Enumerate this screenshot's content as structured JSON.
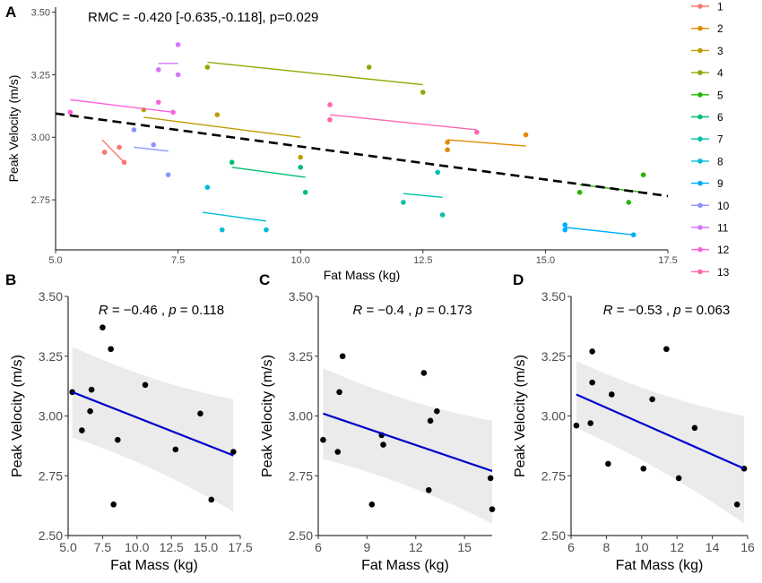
{
  "chart_data": [
    {
      "panel": "A",
      "type": "scatter",
      "annotation": "RMC = -0.420 [-0.635,-0.118], p=0.029",
      "xlabel": "Fat Mass (kg)",
      "ylabel": "Peak Velocity (m/s)",
      "xlim": [
        5.0,
        17.5
      ],
      "ylim": [
        2.55,
        3.52
      ],
      "xticks": [
        5.0,
        7.5,
        10.0,
        12.5,
        15.0,
        17.5
      ],
      "yticks": [
        2.75,
        3.0,
        3.25,
        3.5
      ],
      "xtick_labels": [
        "5.0",
        "7.5",
        "10.0",
        "12.5",
        "15.0",
        "17.5"
      ],
      "ytick_labels": [
        "2.75",
        "3.00",
        "3.25",
        "3.50"
      ],
      "grid": false,
      "legend_position": "right",
      "overall_line": {
        "x": [
          5.0,
          17.5
        ],
        "y": [
          3.095,
          2.765
        ],
        "style": "dashed",
        "color": "#000000"
      },
      "series": [
        {
          "name": "1",
          "color": "#F8766D",
          "points": [
            [
              6.0,
              2.94
            ],
            [
              6.3,
              2.96
            ],
            [
              6.4,
              2.9
            ]
          ],
          "fit": [
            [
              5.95,
              2.99
            ],
            [
              6.4,
              2.9
            ]
          ]
        },
        {
          "name": "2",
          "color": "#E18A00",
          "points": [
            [
              13.0,
              2.98
            ],
            [
              13.0,
              2.95
            ],
            [
              14.6,
              3.01
            ]
          ],
          "fit": [
            [
              13.0,
              2.99
            ],
            [
              14.6,
              2.965
            ]
          ]
        },
        {
          "name": "3",
          "color": "#BE9C00",
          "points": [
            [
              6.8,
              3.11
            ],
            [
              8.3,
              3.09
            ],
            [
              10.0,
              2.92
            ]
          ],
          "fit": [
            [
              6.8,
              3.08
            ],
            [
              10.0,
              3.0
            ]
          ]
        },
        {
          "name": "4",
          "color": "#8CAB00",
          "points": [
            [
              8.1,
              3.28
            ],
            [
              11.4,
              3.28
            ],
            [
              12.5,
              3.18
            ]
          ],
          "fit": [
            [
              8.1,
              3.3
            ],
            [
              12.5,
              3.21
            ]
          ]
        },
        {
          "name": "5",
          "color": "#24B700",
          "points": [
            [
              15.7,
              2.78
            ],
            [
              16.7,
              2.74
            ],
            [
              17.0,
              2.85
            ]
          ],
          "fit": [
            [
              15.7,
              2.81
            ],
            [
              17.0,
              2.78
            ]
          ]
        },
        {
          "name": "6",
          "color": "#00BE70",
          "points": [
            [
              8.6,
              2.9
            ],
            [
              10.0,
              2.88
            ],
            [
              10.1,
              2.78
            ]
          ],
          "fit": [
            [
              8.6,
              2.88
            ],
            [
              10.1,
              2.84
            ]
          ]
        },
        {
          "name": "7",
          "color": "#00C1AB",
          "points": [
            [
              12.1,
              2.74
            ],
            [
              12.8,
              2.86
            ],
            [
              12.9,
              2.69
            ]
          ],
          "fit": [
            [
              12.1,
              2.775
            ],
            [
              12.9,
              2.76
            ]
          ]
        },
        {
          "name": "8",
          "color": "#00BBDA",
          "points": [
            [
              8.1,
              2.8
            ],
            [
              8.4,
              2.63
            ],
            [
              9.3,
              2.63
            ]
          ],
          "fit": [
            [
              8.0,
              2.7
            ],
            [
              9.3,
              2.665
            ]
          ]
        },
        {
          "name": "9",
          "color": "#00ACFC",
          "points": [
            [
              15.4,
              2.65
            ],
            [
              15.4,
              2.63
            ],
            [
              16.8,
              2.61
            ]
          ],
          "fit": [
            [
              15.4,
              2.64
            ],
            [
              16.8,
              2.61
            ]
          ]
        },
        {
          "name": "10",
          "color": "#8B93FF",
          "points": [
            [
              6.6,
              3.03
            ],
            [
              7.0,
              2.97
            ],
            [
              7.3,
              2.85
            ]
          ],
          "fit": [
            [
              6.6,
              2.96
            ],
            [
              7.3,
              2.945
            ]
          ]
        },
        {
          "name": "11",
          "color": "#D575FE",
          "points": [
            [
              7.1,
              3.27
            ],
            [
              7.5,
              3.37
            ],
            [
              7.5,
              3.25
            ]
          ],
          "fit": [
            [
              7.1,
              3.295
            ],
            [
              7.5,
              3.295
            ]
          ]
        },
        {
          "name": "12",
          "color": "#F962DD",
          "points": [
            [
              5.3,
              3.1
            ],
            [
              7.1,
              3.14
            ],
            [
              7.4,
              3.1
            ]
          ],
          "fit": [
            [
              5.3,
              3.15
            ],
            [
              7.4,
              3.1
            ]
          ]
        },
        {
          "name": "13",
          "color": "#FF65AC",
          "points": [
            [
              10.6,
              3.13
            ],
            [
              10.6,
              3.07
            ],
            [
              13.6,
              3.02
            ]
          ],
          "fit": [
            [
              10.6,
              3.09
            ],
            [
              13.6,
              3.03
            ]
          ]
        }
      ]
    },
    {
      "panel": "B",
      "type": "scatter",
      "annotation": {
        "r_label": "R",
        "r_value": "−0.46",
        "sep": ",",
        "p_label": "p",
        "p_value": "0.118"
      },
      "xlabel": "Fat Mass (kg)",
      "ylabel": "Peak Velocity (m/s)",
      "xlim": [
        5.0,
        17.5
      ],
      "ylim": [
        2.5,
        3.5
      ],
      "xticks": [
        5.0,
        7.5,
        10.0,
        12.5,
        15.0,
        17.5
      ],
      "yticks": [
        2.5,
        2.75,
        3.0,
        3.25,
        3.5
      ],
      "xtick_labels": [
        "5.0",
        "7.5",
        "10.0",
        "12.5",
        "15.0",
        "17.5"
      ],
      "ytick_labels": [
        "2.50",
        "2.75",
        "3.00",
        "3.25",
        "3.50"
      ],
      "grid": false,
      "points": [
        [
          5.3,
          3.1
        ],
        [
          6.0,
          2.94
        ],
        [
          6.7,
          3.11
        ],
        [
          6.6,
          3.02
        ],
        [
          7.5,
          3.37
        ],
        [
          8.1,
          3.28
        ],
        [
          8.6,
          2.9
        ],
        [
          8.3,
          2.63
        ],
        [
          10.6,
          3.13
        ],
        [
          12.8,
          2.86
        ],
        [
          14.6,
          3.01
        ],
        [
          15.4,
          2.65
        ],
        [
          17.0,
          2.85
        ]
      ],
      "fit": {
        "x": [
          5.3,
          17.0
        ],
        "y": [
          3.1,
          2.835
        ],
        "color": "#0000CC"
      },
      "band": {
        "x": [
          5.3,
          17.0
        ],
        "upper": [
          3.29,
          3.07
        ],
        "lower": [
          2.91,
          2.6
        ]
      }
    },
    {
      "panel": "C",
      "type": "scatter",
      "annotation": {
        "r_label": "R",
        "r_value": "−0.4",
        "sep": ",",
        "p_label": "p",
        "p_value": "0.173"
      },
      "xlabel": "Fat Mass (kg)",
      "ylabel": "Peak Velocity (m/s)",
      "xlim": [
        6.0,
        16.7
      ],
      "ylim": [
        2.5,
        3.5
      ],
      "xticks": [
        6,
        9,
        12,
        15
      ],
      "yticks": [
        2.5,
        2.75,
        3.0,
        3.25,
        3.5
      ],
      "xtick_labels": [
        "6",
        "9",
        "12",
        "15"
      ],
      "ytick_labels": [
        "2.50",
        "2.75",
        "3.00",
        "3.25",
        "3.50"
      ],
      "grid": false,
      "points": [
        [
          6.3,
          2.9
        ],
        [
          7.2,
          2.85
        ],
        [
          7.3,
          3.1
        ],
        [
          7.5,
          3.25
        ],
        [
          9.3,
          2.63
        ],
        [
          9.9,
          2.92
        ],
        [
          10.0,
          2.88
        ],
        [
          12.5,
          3.18
        ],
        [
          12.8,
          2.69
        ],
        [
          12.9,
          2.98
        ],
        [
          13.3,
          3.02
        ],
        [
          16.6,
          2.74
        ],
        [
          16.7,
          2.61
        ]
      ],
      "fit": {
        "x": [
          6.3,
          16.7
        ],
        "y": [
          3.01,
          2.77
        ],
        "color": "#0000CC"
      },
      "band": {
        "x": [
          6.3,
          16.7
        ],
        "upper": [
          3.2,
          2.98
        ],
        "lower": [
          2.82,
          2.55
        ]
      }
    },
    {
      "panel": "D",
      "type": "scatter",
      "annotation": {
        "r_label": "R",
        "r_value": "−0.53",
        "sep": ",",
        "p_label": "p",
        "p_value": "0.063"
      },
      "xlabel": "Fat Mass (kg)",
      "ylabel": "Peak Velocity (m/s)",
      "xlim": [
        6.0,
        16.0
      ],
      "ylim": [
        2.5,
        3.5
      ],
      "xticks": [
        6,
        8,
        10,
        12,
        14,
        16
      ],
      "yticks": [
        2.5,
        2.75,
        3.0,
        3.25,
        3.5
      ],
      "xtick_labels": [
        "6",
        "8",
        "10",
        "12",
        "14",
        "16"
      ],
      "ytick_labels": [
        "2.50",
        "2.75",
        "3.00",
        "3.25",
        "3.50"
      ],
      "grid": false,
      "points": [
        [
          6.3,
          2.96
        ],
        [
          7.1,
          2.97
        ],
        [
          7.2,
          3.27
        ],
        [
          7.2,
          3.14
        ],
        [
          8.1,
          2.8
        ],
        [
          8.3,
          3.09
        ],
        [
          10.1,
          2.78
        ],
        [
          10.6,
          3.07
        ],
        [
          11.4,
          3.28
        ],
        [
          12.1,
          2.74
        ],
        [
          13.0,
          2.95
        ],
        [
          15.4,
          2.63
        ],
        [
          15.8,
          2.78
        ]
      ],
      "fit": {
        "x": [
          6.3,
          15.8
        ],
        "y": [
          3.09,
          2.78
        ],
        "color": "#0000CC"
      },
      "band": {
        "x": [
          6.3,
          15.8
        ],
        "upper": [
          3.23,
          3.0
        ],
        "lower": [
          2.95,
          2.55
        ]
      }
    }
  ]
}
